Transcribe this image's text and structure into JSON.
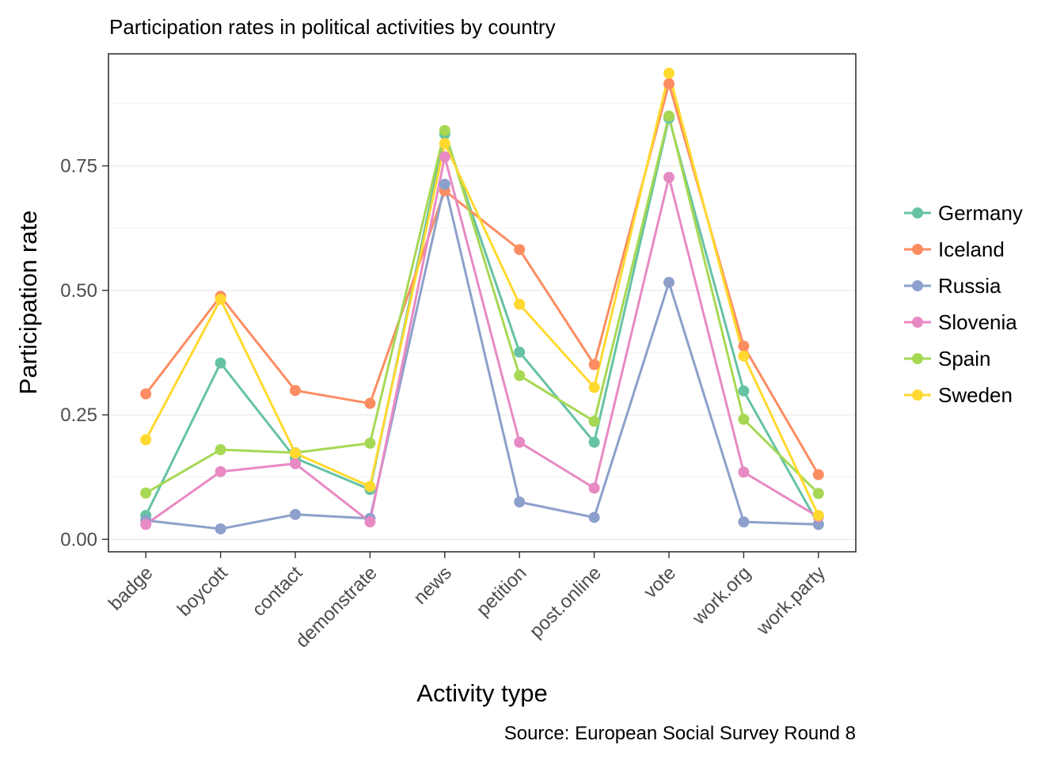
{
  "chart_data": {
    "type": "line",
    "title": "Participation rates in political activities by country",
    "xlabel": "Activity type",
    "ylabel": "Participation rate",
    "caption": "Source: European Social Survey Round 8",
    "categories": [
      "badge",
      "boycott",
      "contact",
      "demonstrate",
      "news",
      "petition",
      "post.online",
      "vote",
      "work.org",
      "work.party"
    ],
    "ylim": [
      -0.025,
      0.975
    ],
    "yticks": [
      0.0,
      0.25,
      0.5,
      0.75
    ],
    "ytick_labels": [
      "0.00",
      "0.25",
      "0.50",
      "0.75"
    ],
    "grid": true,
    "legend_position": "right",
    "series": [
      {
        "name": "Germany",
        "color": "#66C2A5",
        "values": [
          0.048,
          0.354,
          0.163,
          0.1,
          0.814,
          0.376,
          0.195,
          0.846,
          0.298,
          0.03
        ]
      },
      {
        "name": "Iceland",
        "color": "#FC8D62",
        "values": [
          0.292,
          0.488,
          0.299,
          0.273,
          0.7,
          0.582,
          0.351,
          0.915,
          0.388,
          0.13
        ]
      },
      {
        "name": "Russia",
        "color": "#8DA0CB",
        "values": [
          0.038,
          0.021,
          0.05,
          0.042,
          0.713,
          0.075,
          0.044,
          0.516,
          0.035,
          0.03
        ]
      },
      {
        "name": "Slovenia",
        "color": "#E78AC3",
        "values": [
          0.03,
          0.136,
          0.152,
          0.035,
          0.768,
          0.195,
          0.103,
          0.727,
          0.135,
          0.045
        ]
      },
      {
        "name": "Spain",
        "color": "#A6D854",
        "values": [
          0.093,
          0.18,
          0.174,
          0.193,
          0.821,
          0.329,
          0.237,
          0.85,
          0.241,
          0.092
        ]
      },
      {
        "name": "Sweden",
        "color": "#FFD92F",
        "values": [
          0.2,
          0.482,
          0.173,
          0.106,
          0.795,
          0.472,
          0.305,
          0.936,
          0.368,
          0.048
        ]
      }
    ]
  }
}
